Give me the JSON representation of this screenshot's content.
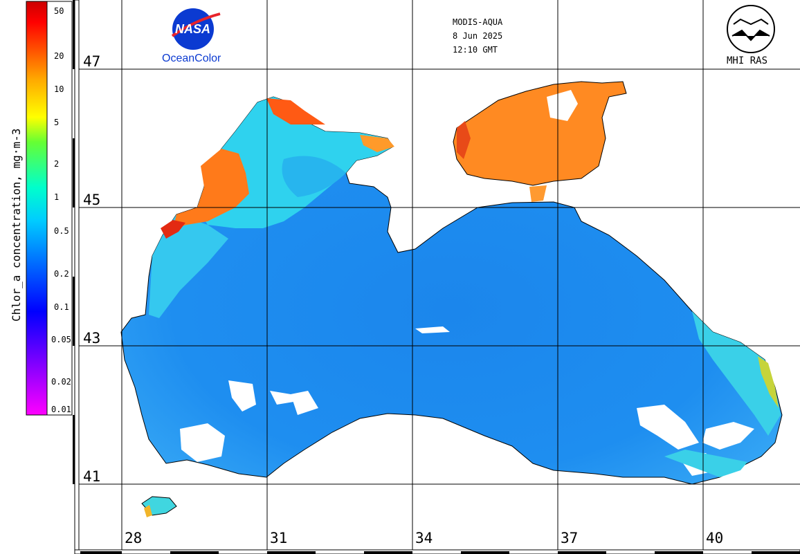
{
  "header": {
    "sensor": "MODIS-AQUA",
    "date": "8 Jun 2025",
    "time": "12:10 GMT"
  },
  "logos": {
    "nasa_text": "NASA",
    "oceancolor_text": "OceanColor",
    "mhi_text": "MHI RAS"
  },
  "colorbar": {
    "title": "Chlor_a concentration, mg·m-3",
    "ticks": [
      "50",
      "20",
      "10",
      "5",
      "2",
      "1",
      "0.5",
      "0.2",
      "0.1",
      "0.05",
      "0.02",
      "0.01"
    ],
    "scale": "log",
    "colors": [
      "#ff00ff",
      "#9900ff",
      "#0000ff",
      "#0066ff",
      "#00ccff",
      "#00ffcc",
      "#66ff33",
      "#ffff00",
      "#ffaa00",
      "#ff5500",
      "#ff0000",
      "#cc0000"
    ]
  },
  "grid": {
    "latitudes": [
      "47",
      "45",
      "43",
      "41"
    ],
    "longitudes": [
      "28",
      "31",
      "34",
      "37",
      "40"
    ]
  },
  "map": {
    "colors": {
      "open_sea": "#1e8ef0",
      "open_sea_light": "#3aa6f5",
      "shelf": "#25d6f0",
      "coastal_high": "#ff7a1a",
      "coastal_extreme": "#e32a12",
      "azov": "#ff8a22",
      "cloud": "#ffffff",
      "land": "#ffffff",
      "coast_line": "#000000",
      "grid_line": "#000000"
    }
  }
}
